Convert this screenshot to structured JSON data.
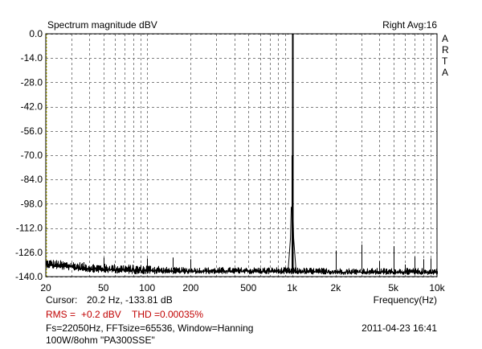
{
  "header": {
    "title": "Spectrum magnitude dBV",
    "channel_info": "Right  Avg:16"
  },
  "brand": {
    "letters": [
      "A",
      "R",
      "T",
      "A"
    ]
  },
  "footer": {
    "cursor_label": "Cursor:",
    "cursor_value": "20.2 Hz, -133.81 dB",
    "rms_label": "RMS =",
    "rms_value": "+0.2 dBV",
    "thd_label": "THD =0.00035%",
    "fft_info": "Fs=22050Hz, FFTsize=65536, Window=Hanning",
    "timestamp": "2011-04-23  16:41",
    "device_note": "100W/8ohm \"PA300SSE\""
  },
  "colors": {
    "grid": "#808080",
    "trace": "#000000",
    "left_axis_marker": "#c8c800",
    "rms_text": "#c00000"
  },
  "chart_data": {
    "type": "line",
    "title": "Spectrum magnitude dBV",
    "xlabel": "Frequency(Hz)",
    "ylabel": "",
    "xscale": "log",
    "xlim": [
      20,
      10000
    ],
    "ylim": [
      -140,
      0
    ],
    "grid": true,
    "x_ticks": [
      {
        "value": 20,
        "label": "20"
      },
      {
        "value": 50,
        "label": "50"
      },
      {
        "value": 100,
        "label": "100"
      },
      {
        "value": 200,
        "label": "200"
      },
      {
        "value": 500,
        "label": "500"
      },
      {
        "value": 1000,
        "label": "1k"
      },
      {
        "value": 2000,
        "label": "2k"
      },
      {
        "value": 5000,
        "label": "5k"
      },
      {
        "value": 10000,
        "label": "10k"
      }
    ],
    "y_ticks": [
      {
        "value": 0,
        "label": "0.0"
      },
      {
        "value": -14,
        "label": "-14.0"
      },
      {
        "value": -28,
        "label": "-28.0"
      },
      {
        "value": -42,
        "label": "-42.0"
      },
      {
        "value": -56,
        "label": "-56.0"
      },
      {
        "value": -70,
        "label": "-70.0"
      },
      {
        "value": -84,
        "label": "-84.0"
      },
      {
        "value": -98,
        "label": "-98.0"
      },
      {
        "value": -112,
        "label": "-112.0"
      },
      {
        "value": -126,
        "label": "-126.0"
      },
      {
        "value": -140,
        "label": "-140.0"
      }
    ],
    "noise_floor": [
      [
        20,
        -133
      ],
      [
        25,
        -134
      ],
      [
        30,
        -134.5
      ],
      [
        35,
        -135
      ],
      [
        40,
        -135.5
      ],
      [
        50,
        -136
      ],
      [
        60,
        -136
      ],
      [
        80,
        -136.5
      ],
      [
        100,
        -136.5
      ],
      [
        150,
        -137
      ],
      [
        200,
        -137
      ],
      [
        300,
        -137
      ],
      [
        500,
        -137
      ],
      [
        800,
        -137
      ],
      [
        2000,
        -137.5
      ],
      [
        5000,
        -137.5
      ],
      [
        10000,
        -137.5
      ]
    ],
    "series": [
      {
        "values": [
          [
            50,
            -129
          ],
          [
            100,
            -129.5
          ],
          [
            150,
            -129
          ],
          [
            200,
            -130
          ],
          [
            990,
            -70
          ],
          [
            1000,
            -0.2
          ],
          [
            1010,
            -80
          ],
          [
            2000,
            -125
          ],
          [
            3000,
            -121.5
          ],
          [
            4000,
            -131
          ],
          [
            5000,
            -122.5
          ],
          [
            6000,
            -133
          ],
          [
            7000,
            -128.5
          ],
          [
            8000,
            -130
          ],
          [
            9000,
            -129.5
          ]
        ]
      }
    ]
  }
}
